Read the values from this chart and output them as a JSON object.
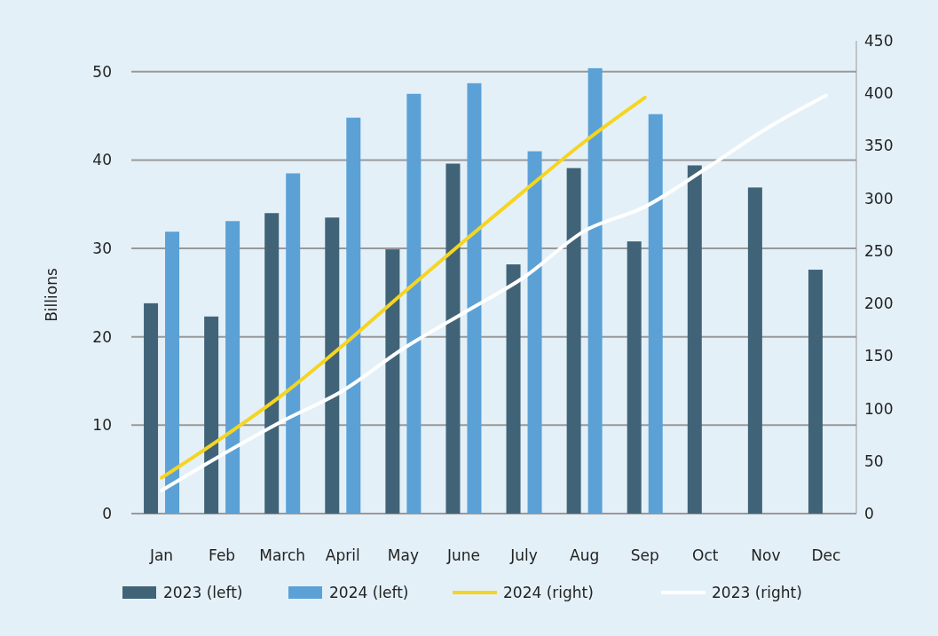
{
  "chart_data": {
    "type": "bar",
    "ylabel": "Billions",
    "categories": [
      "Jan",
      "Feb",
      "March",
      "April",
      "May",
      "June",
      "July",
      "Aug",
      "Sep",
      "Oct",
      "Nov",
      "Dec"
    ],
    "series": [
      {
        "name": "2023 (left)",
        "color": "#416377",
        "values": [
          23.8,
          22.3,
          34.0,
          33.5,
          29.9,
          39.6,
          28.2,
          39.1,
          30.8,
          39.4,
          36.9,
          27.6
        ]
      },
      {
        "name": "2024 (left)",
        "color": "#5ba1d6",
        "values": [
          31.9,
          33.1,
          38.5,
          44.8,
          47.5,
          48.7,
          41.0,
          50.4,
          45.2,
          null,
          null,
          null
        ]
      },
      {
        "name": "2024 (right)",
        "type": "line",
        "axis": "y2",
        "color": "#f5d521",
        "values": [
          34,
          72,
          113,
          160,
          210,
          259,
          307,
          354,
          396,
          null,
          null,
          null
        ]
      },
      {
        "name": "2023 (right)",
        "type": "line",
        "axis": "y2",
        "color": "#ffffff",
        "values": [
          22,
          56,
          88,
          117,
          157,
          191,
          225,
          269,
          292,
          328,
          366,
          398
        ]
      }
    ],
    "ylim": [
      0,
      53.5
    ],
    "yticks": [
      0,
      10,
      20,
      30,
      40,
      50
    ],
    "y2lim": [
      0,
      450
    ],
    "y2ticks": [
      0,
      50,
      100,
      150,
      200,
      250,
      300,
      350,
      400,
      450
    ],
    "grid": "y",
    "legend": "bottom",
    "marker": "none",
    "line_style": "solid"
  }
}
